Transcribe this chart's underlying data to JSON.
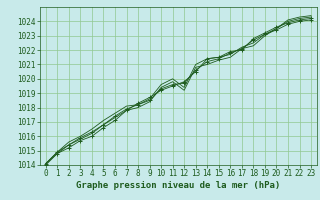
{
  "background_color": "#c8eaea",
  "grid_color": "#90c890",
  "line_color": "#1e5c1e",
  "marker_color": "#1e5c1e",
  "title": "Graphe pression niveau de la mer (hPa)",
  "tick_fontsize": 5.5,
  "title_fontsize": 6.5,
  "xlim": [
    -0.5,
    23.5
  ],
  "ylim": [
    1014,
    1025
  ],
  "xticks": [
    0,
    1,
    2,
    3,
    4,
    5,
    6,
    7,
    8,
    9,
    10,
    11,
    12,
    13,
    14,
    15,
    16,
    17,
    18,
    19,
    20,
    21,
    22,
    23
  ],
  "yticks": [
    1014,
    1015,
    1016,
    1017,
    1018,
    1019,
    1020,
    1021,
    1022,
    1023,
    1024
  ],
  "series": [
    {
      "x": [
        0,
        1,
        2,
        3,
        4,
        5,
        6,
        7,
        8,
        9,
        10,
        11,
        12,
        13,
        14,
        15,
        16,
        17,
        18,
        19,
        20,
        21,
        22,
        23
      ],
      "y": [
        1014.1,
        1014.8,
        1015.4,
        1015.8,
        1016.2,
        1016.8,
        1017.3,
        1017.8,
        1018.0,
        1018.4,
        1019.4,
        1019.8,
        1019.2,
        1020.8,
        1021.0,
        1021.3,
        1021.5,
        1022.1,
        1022.3,
        1023.0,
        1023.5,
        1024.0,
        1024.2,
        1024.3
      ],
      "with_markers": false
    },
    {
      "x": [
        0,
        1,
        2,
        3,
        4,
        5,
        6,
        7,
        8,
        9,
        10,
        11,
        12,
        13,
        14,
        15,
        16,
        17,
        18,
        19,
        20,
        21,
        22,
        23
      ],
      "y": [
        1014.1,
        1014.9,
        1015.6,
        1016.0,
        1016.5,
        1017.1,
        1017.6,
        1018.1,
        1018.2,
        1018.6,
        1019.6,
        1020.0,
        1019.4,
        1021.0,
        1021.4,
        1021.5,
        1021.7,
        1022.2,
        1022.5,
        1023.1,
        1023.5,
        1024.1,
        1024.3,
        1024.4
      ],
      "with_markers": false
    },
    {
      "x": [
        0,
        1,
        2,
        3,
        4,
        5,
        6,
        7,
        8,
        9,
        10,
        11,
        12,
        13,
        14,
        15,
        16,
        17,
        18,
        19,
        20,
        21,
        22,
        23
      ],
      "y": [
        1014.0,
        1014.8,
        1015.2,
        1015.7,
        1016.0,
        1016.6,
        1017.1,
        1017.8,
        1018.3,
        1018.7,
        1019.2,
        1019.5,
        1019.8,
        1020.5,
        1021.4,
        1021.5,
        1021.9,
        1022.0,
        1022.8,
        1023.2,
        1023.6,
        1023.9,
        1024.1,
        1024.2
      ],
      "with_markers": true
    },
    {
      "x": [
        0,
        1,
        2,
        3,
        4,
        5,
        6,
        7,
        8,
        9,
        10,
        11,
        12,
        13,
        14,
        15,
        16,
        17,
        18,
        19,
        20,
        21,
        22,
        23
      ],
      "y": [
        1014.1,
        1014.9,
        1015.4,
        1015.9,
        1016.3,
        1016.8,
        1017.4,
        1017.9,
        1018.2,
        1018.5,
        1019.3,
        1019.6,
        1019.7,
        1020.6,
        1021.2,
        1021.4,
        1021.8,
        1022.1,
        1022.7,
        1023.1,
        1023.4,
        1023.8,
        1024.0,
        1024.1
      ],
      "with_markers": true
    }
  ]
}
